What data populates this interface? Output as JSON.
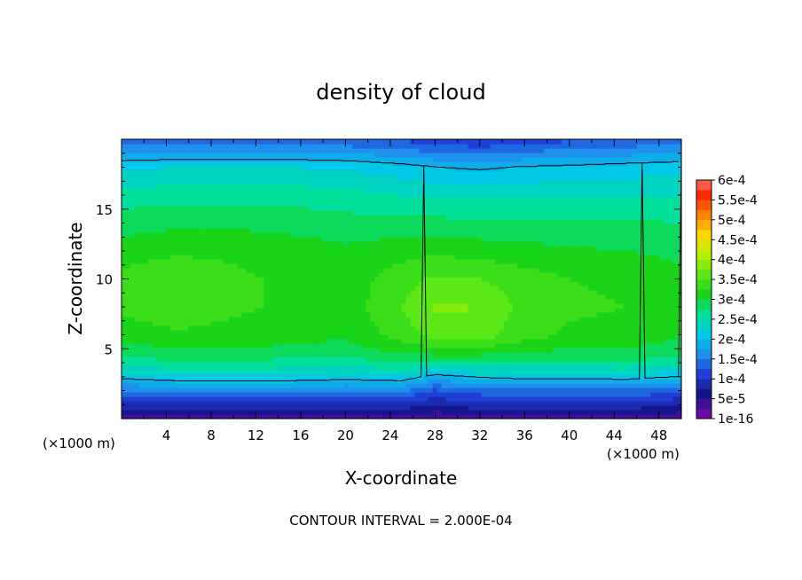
{
  "chart_data": {
    "type": "heatmap",
    "title": "density of cloud",
    "xlabel": "X-coordinate",
    "ylabel": "Z-coordinate",
    "x_unit_left": "(×1000 m)",
    "x_unit_right": "(×1000 m)",
    "footer": "CONTOUR INTERVAL = 2.000E-04",
    "xlim": [
      0,
      50
    ],
    "ylim": [
      0,
      20
    ],
    "x_ticks": [
      4,
      8,
      12,
      16,
      20,
      24,
      28,
      32,
      36,
      40,
      44,
      48
    ],
    "y_ticks": [
      5,
      10,
      15
    ],
    "colorbar": {
      "labels": [
        "1e-16",
        "5e-5",
        "1e-4",
        "1.5e-4",
        "2e-4",
        "2.5e-4",
        "3e-4",
        "3.5e-4",
        "4e-4",
        "4.5e-4",
        "5e-4",
        "5.5e-4",
        "6e-4"
      ],
      "colors": [
        "#6a0aa8",
        "#14148c",
        "#1f3fd6",
        "#1e90ee",
        "#00c8e6",
        "#00e09a",
        "#19d419",
        "#5ce817",
        "#b4f000",
        "#ffd800",
        "#ff7f00",
        "#ff2a00",
        "#ff8c8c"
      ]
    },
    "z_grid_x": [
      0,
      5,
      10,
      15,
      20,
      25,
      28,
      32,
      35,
      40,
      45,
      50
    ],
    "z_grid_y": [
      0,
      0.5,
      1,
      1.5,
      2,
      3,
      4,
      5,
      6,
      8,
      10,
      12,
      14,
      16,
      18,
      20
    ],
    "z_values_e4": [
      [
        0.3,
        0.3,
        0.3,
        0.3,
        0.3,
        0.3,
        0.3,
        0.3,
        0.3,
        0.3,
        0.3,
        0.3
      ],
      [
        0.6,
        0.6,
        0.6,
        0.6,
        0.6,
        0.6,
        0.5,
        0.6,
        0.6,
        0.6,
        0.6,
        0.5
      ],
      [
        0.9,
        0.9,
        0.9,
        0.9,
        0.9,
        0.9,
        0.8,
        0.9,
        0.9,
        0.9,
        0.9,
        0.8
      ],
      [
        1.2,
        1.2,
        1.2,
        1.2,
        1.2,
        1.2,
        1.0,
        1.1,
        1.2,
        1.2,
        1.2,
        1.0
      ],
      [
        1.5,
        1.55,
        1.55,
        1.55,
        1.5,
        1.55,
        1.2,
        1.4,
        1.45,
        1.45,
        1.45,
        1.3
      ],
      [
        2.1,
        2.2,
        2.2,
        2.2,
        2.15,
        2.2,
        1.9,
        2.05,
        2.1,
        2.1,
        2.15,
        2.0
      ],
      [
        2.6,
        2.7,
        2.7,
        2.65,
        2.6,
        2.75,
        2.7,
        2.7,
        2.7,
        2.65,
        2.7,
        2.6
      ],
      [
        2.9,
        3.0,
        3.0,
        2.95,
        2.9,
        3.1,
        3.2,
        3.2,
        3.1,
        3.0,
        3.0,
        2.9
      ],
      [
        3.1,
        3.2,
        3.15,
        3.1,
        3.05,
        3.35,
        3.6,
        3.65,
        3.4,
        3.2,
        3.15,
        3.0
      ],
      [
        3.3,
        3.45,
        3.3,
        3.2,
        3.1,
        3.5,
        3.8,
        3.75,
        3.5,
        3.3,
        3.25,
        3.1
      ],
      [
        3.35,
        3.5,
        3.3,
        3.2,
        3.1,
        3.4,
        3.55,
        3.5,
        3.4,
        3.25,
        3.2,
        3.05
      ],
      [
        3.1,
        3.2,
        3.2,
        3.15,
        3.05,
        3.15,
        3.2,
        3.15,
        3.1,
        3.05,
        3.0,
        2.95
      ],
      [
        2.9,
        2.95,
        2.95,
        2.9,
        2.85,
        2.85,
        2.85,
        2.8,
        2.8,
        2.8,
        2.8,
        2.75
      ],
      [
        2.6,
        2.65,
        2.65,
        2.65,
        2.6,
        2.5,
        2.45,
        2.45,
        2.45,
        2.5,
        2.5,
        2.5
      ],
      [
        2.2,
        2.25,
        2.25,
        2.25,
        2.2,
        2.1,
        2.0,
        1.95,
        2.0,
        2.05,
        2.1,
        2.15
      ],
      [
        1.3,
        1.3,
        1.3,
        1.3,
        1.3,
        1.2,
        1.1,
        1.0,
        1.1,
        1.2,
        1.3,
        1.35
      ]
    ]
  }
}
